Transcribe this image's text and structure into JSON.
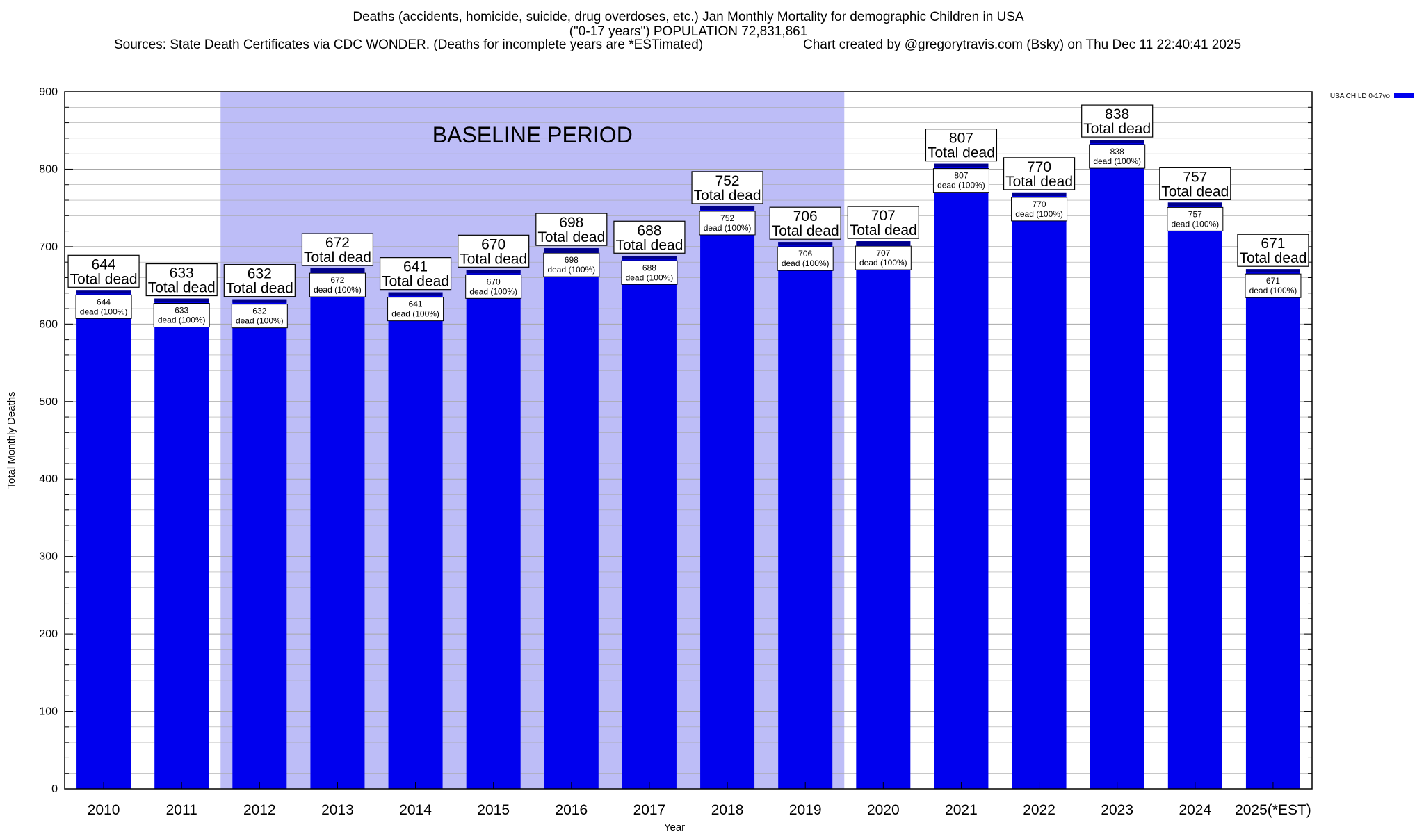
{
  "header": {
    "title_line1": "Deaths (accidents, homicide, suicide, drug overdoses, etc.) Jan Monthly Mortality for demographic Children in USA",
    "title_line2": "(\"0-17 years\") POPULATION 72,831,861",
    "sources": "Sources: State Death Certificates via CDC WONDER. (Deaths for incomplete years are *ESTimated)",
    "credit": "Chart created by @gregorytravis.com (Bsky) on Thu Dec 11 22:40:41 2025"
  },
  "colors": {
    "bar": "#0000ee",
    "bar_cap": "#00008b",
    "baseline_shade": "#bdbdf7",
    "grid": "#a8a8a8"
  },
  "chart_data": {
    "type": "bar",
    "title": "Deaths (accidents, homicide, suicide, drug overdoses, etc.) Jan Monthly Mortality for demographic Children in USA",
    "xlabel": "Year",
    "ylabel": "Total Monthly Deaths",
    "ylim": [
      0,
      900
    ],
    "y_ticks": [
      0,
      100,
      200,
      300,
      400,
      500,
      600,
      700,
      800,
      900
    ],
    "categories": [
      "2010",
      "2011",
      "2012",
      "2013",
      "2014",
      "2015",
      "2016",
      "2017",
      "2018",
      "2019",
      "2020",
      "2021",
      "2022",
      "2023",
      "2024",
      "2025(*EST)"
    ],
    "series": [
      {
        "name": "USA CHILD 0-17yo",
        "values": [
          644,
          633,
          632,
          672,
          641,
          670,
          698,
          688,
          752,
          706,
          707,
          807,
          770,
          838,
          757,
          671
        ]
      }
    ],
    "top_label_suffix": "Total dead",
    "inner_label_suffix": "dead (100%)",
    "baseline": {
      "label": "BASELINE PERIOD",
      "start": "2012",
      "end": "2019"
    },
    "legend": {
      "label": "USA CHILD 0-17yo",
      "position": "top-right outside"
    },
    "grid": true
  }
}
